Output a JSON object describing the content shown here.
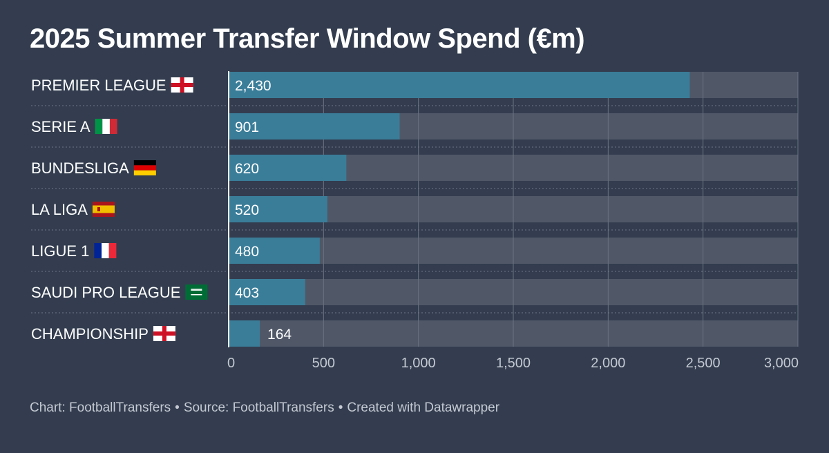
{
  "header": {
    "title": "2025 Summer Transfer Window Spend (€m)"
  },
  "chart_data": {
    "type": "bar",
    "orientation": "horizontal",
    "title": "2025 Summer Transfer Window Spend (€m)",
    "categories": [
      "PREMIER LEAGUE",
      "SERIE A",
      "BUNDESLIGA",
      "LA LIGA",
      "LIGUE 1",
      "SAUDI PRO LEAGUE",
      "CHAMPIONSHIP"
    ],
    "flags": [
      "england",
      "italy",
      "germany",
      "spain",
      "france",
      "saudi-arabia",
      "england"
    ],
    "values": [
      2430,
      901,
      620,
      520,
      480,
      403,
      164
    ],
    "value_labels": [
      "2,430",
      "901",
      "620",
      "520",
      "480",
      "403",
      "164"
    ],
    "xlim": [
      0,
      3000
    ],
    "x_ticks": [
      0,
      500,
      1000,
      1500,
      2000,
      2500,
      3000
    ],
    "x_tick_labels": [
      "0",
      "500",
      "1,000",
      "1,500",
      "2,000",
      "2,500",
      "3,000"
    ],
    "grid": true,
    "colors": {
      "bar": "#3a7d99",
      "track": "#505868",
      "background": "#333d4f"
    }
  },
  "footer": {
    "chart_credit": "Chart: FootballTransfers",
    "source": "Source: FootballTransfers",
    "created_with": "Created with Datawrapper",
    "separator": "•"
  }
}
